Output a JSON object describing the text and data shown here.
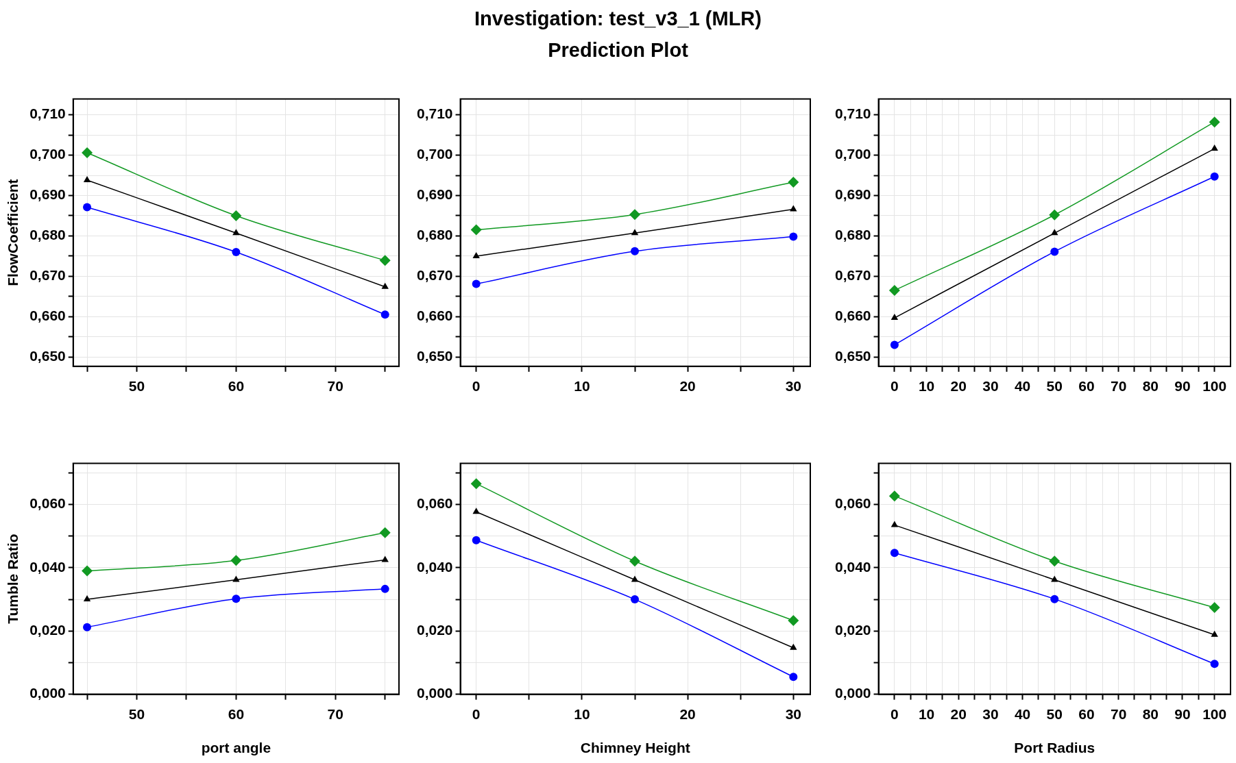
{
  "chart_data": [
    {
      "type": "line",
      "ylabel": "FlowCoefficient",
      "x": [
        45,
        60,
        75
      ],
      "xlim": [
        43.6,
        76.4
      ],
      "xticks": [
        {
          "value": 45,
          "label": null
        },
        50,
        {
          "value": 55,
          "label": null
        },
        60,
        {
          "value": 65,
          "label": null
        },
        70,
        {
          "value": 75,
          "label": null
        }
      ],
      "ylim": [
        0.6477,
        0.7139
      ],
      "yticks": [
        {
          "value": 0.65,
          "label": "0,650"
        },
        {
          "value": 0.655,
          "label": null
        },
        {
          "value": 0.66,
          "label": "0,660"
        },
        {
          "value": 0.665,
          "label": null
        },
        {
          "value": 0.67,
          "label": "0,670"
        },
        {
          "value": 0.675,
          "label": null
        },
        {
          "value": 0.68,
          "label": "0,680"
        },
        {
          "value": 0.685,
          "label": null
        },
        {
          "value": 0.69,
          "label": "0,690"
        },
        {
          "value": 0.695,
          "label": null
        },
        {
          "value": 0.7,
          "label": "0,700"
        },
        {
          "value": 0.705,
          "label": null
        },
        {
          "value": 0.71,
          "label": "0,710"
        }
      ],
      "grid": true,
      "series": [
        {
          "color": "#119922",
          "marker": "diamond",
          "values": [
            0.7006,
            0.685,
            0.6739
          ]
        },
        {
          "color": "#000000",
          "marker": "triangle",
          "values": [
            0.6938,
            0.6807,
            0.6674
          ]
        },
        {
          "color": "#0000ff",
          "marker": "circle",
          "values": [
            0.6871,
            0.676,
            0.6605
          ]
        }
      ]
    },
    {
      "type": "line",
      "title": "Investigation: test_v3_1 (MLR)",
      "subtitle": "Prediction Plot",
      "x": [
        0,
        15,
        30
      ],
      "xlim": [
        -1.5,
        31.6
      ],
      "xticks": [
        0,
        {
          "value": 5,
          "label": null
        },
        10,
        {
          "value": 15,
          "label": null
        },
        20,
        {
          "value": 25,
          "label": null
        },
        30
      ],
      "ylim": [
        0.6477,
        0.7139
      ],
      "yticks": [
        {
          "value": 0.65,
          "label": "0,650"
        },
        {
          "value": 0.655,
          "label": null
        },
        {
          "value": 0.66,
          "label": "0,660"
        },
        {
          "value": 0.665,
          "label": null
        },
        {
          "value": 0.67,
          "label": "0,670"
        },
        {
          "value": 0.675,
          "label": null
        },
        {
          "value": 0.68,
          "label": "0,680"
        },
        {
          "value": 0.685,
          "label": null
        },
        {
          "value": 0.69,
          "label": "0,690"
        },
        {
          "value": 0.695,
          "label": null
        },
        {
          "value": 0.7,
          "label": "0,700"
        },
        {
          "value": 0.705,
          "label": null
        },
        {
          "value": 0.71,
          "label": "0,710"
        }
      ],
      "grid": true,
      "series": [
        {
          "color": "#119922",
          "marker": "diamond",
          "values": [
            0.6815,
            0.6853,
            0.6933
          ]
        },
        {
          "color": "#000000",
          "marker": "triangle",
          "values": [
            0.675,
            0.6807,
            0.6866
          ]
        },
        {
          "color": "#0000ff",
          "marker": "circle",
          "values": [
            0.6681,
            0.6762,
            0.6798
          ]
        }
      ]
    },
    {
      "type": "line",
      "x": [
        0,
        50,
        100
      ],
      "xlim": [
        -5,
        105
      ],
      "xticks": [
        0,
        {
          "value": 5,
          "label": null
        },
        10,
        {
          "value": 15,
          "label": null
        },
        20,
        {
          "value": 25,
          "label": null
        },
        30,
        {
          "value": 35,
          "label": null
        },
        40,
        {
          "value": 45,
          "label": null
        },
        50,
        {
          "value": 55,
          "label": null
        },
        60,
        {
          "value": 65,
          "label": null
        },
        70,
        {
          "value": 75,
          "label": null
        },
        80,
        {
          "value": 85,
          "label": null
        },
        90,
        {
          "value": 95,
          "label": null
        },
        100
      ],
      "ylim": [
        0.6477,
        0.7139
      ],
      "yticks": [
        {
          "value": 0.65,
          "label": "0,650"
        },
        {
          "value": 0.655,
          "label": null
        },
        {
          "value": 0.66,
          "label": "0,660"
        },
        {
          "value": 0.665,
          "label": null
        },
        {
          "value": 0.67,
          "label": "0,670"
        },
        {
          "value": 0.675,
          "label": null
        },
        {
          "value": 0.68,
          "label": "0,680"
        },
        {
          "value": 0.685,
          "label": null
        },
        {
          "value": 0.69,
          "label": "0,690"
        },
        {
          "value": 0.695,
          "label": null
        },
        {
          "value": 0.7,
          "label": "0,700"
        },
        {
          "value": 0.705,
          "label": null
        },
        {
          "value": 0.71,
          "label": "0,710"
        }
      ],
      "grid": true,
      "series": [
        {
          "color": "#119922",
          "marker": "diamond",
          "values": [
            0.6665,
            0.6852,
            0.7082
          ]
        },
        {
          "color": "#000000",
          "marker": "triangle",
          "values": [
            0.6597,
            0.6807,
            0.7016
          ]
        },
        {
          "color": "#0000ff",
          "marker": "circle",
          "values": [
            0.653,
            0.6761,
            0.6947
          ]
        }
      ]
    },
    {
      "type": "line",
      "ylabel": "Tumble Ratio",
      "xlabel": "port angle",
      "x": [
        45,
        60,
        75
      ],
      "xlim": [
        43.6,
        76.4
      ],
      "xticks": [
        {
          "value": 45,
          "label": null
        },
        50,
        {
          "value": 55,
          "label": null
        },
        60,
        {
          "value": 65,
          "label": null
        },
        70,
        {
          "value": 75,
          "label": null
        }
      ],
      "ylim": [
        0,
        0.073
      ],
      "yticks": [
        {
          "value": 0,
          "label": "0,000"
        },
        {
          "value": 0.01,
          "label": null
        },
        {
          "value": 0.02,
          "label": "0,020"
        },
        {
          "value": 0.03,
          "label": null
        },
        {
          "value": 0.04,
          "label": "0,040"
        },
        {
          "value": 0.05,
          "label": null
        },
        {
          "value": 0.06,
          "label": "0,060"
        },
        {
          "value": 0.07,
          "label": null
        }
      ],
      "grid": true,
      "series": [
        {
          "color": "#119922",
          "marker": "diamond",
          "values": [
            0.039,
            0.0423,
            0.0511
          ]
        },
        {
          "color": "#000000",
          "marker": "triangle",
          "values": [
            0.03,
            0.0362,
            0.0425
          ]
        },
        {
          "color": "#0000ff",
          "marker": "circle",
          "values": [
            0.0212,
            0.0302,
            0.0333
          ]
        }
      ]
    },
    {
      "type": "line",
      "xlabel": "Chimney Height",
      "x": [
        0,
        15,
        30
      ],
      "xlim": [
        -1.5,
        31.6
      ],
      "xticks": [
        0,
        {
          "value": 5,
          "label": null
        },
        10,
        {
          "value": 15,
          "label": null
        },
        20,
        {
          "value": 25,
          "label": null
        },
        30
      ],
      "ylim": [
        0,
        0.073
      ],
      "yticks": [
        {
          "value": 0,
          "label": "0,000"
        },
        {
          "value": 0.01,
          "label": null
        },
        {
          "value": 0.02,
          "label": "0,020"
        },
        {
          "value": 0.03,
          "label": null
        },
        {
          "value": 0.04,
          "label": "0,040"
        },
        {
          "value": 0.05,
          "label": null
        },
        {
          "value": 0.06,
          "label": "0,060"
        },
        {
          "value": 0.07,
          "label": null
        }
      ],
      "grid": true,
      "series": [
        {
          "color": "#119922",
          "marker": "diamond",
          "values": [
            0.0666,
            0.0421,
            0.0233
          ]
        },
        {
          "color": "#000000",
          "marker": "triangle",
          "values": [
            0.0577,
            0.0362,
            0.0147
          ]
        },
        {
          "color": "#0000ff",
          "marker": "circle",
          "values": [
            0.0487,
            0.03,
            0.0055
          ]
        }
      ]
    },
    {
      "type": "line",
      "xlabel": "Port Radius",
      "x": [
        0,
        50,
        100
      ],
      "xlim": [
        -5,
        105
      ],
      "xticks": [
        0,
        {
          "value": 5,
          "label": null
        },
        10,
        {
          "value": 15,
          "label": null
        },
        20,
        {
          "value": 25,
          "label": null
        },
        30,
        {
          "value": 35,
          "label": null
        },
        40,
        {
          "value": 45,
          "label": null
        },
        50,
        {
          "value": 55,
          "label": null
        },
        60,
        {
          "value": 65,
          "label": null
        },
        70,
        {
          "value": 75,
          "label": null
        },
        80,
        {
          "value": 85,
          "label": null
        },
        90,
        {
          "value": 95,
          "label": null
        },
        100
      ],
      "ylim": [
        0,
        0.073
      ],
      "yticks": [
        {
          "value": 0,
          "label": "0,000"
        },
        {
          "value": 0.01,
          "label": null
        },
        {
          "value": 0.02,
          "label": "0,020"
        },
        {
          "value": 0.03,
          "label": null
        },
        {
          "value": 0.04,
          "label": "0,040"
        },
        {
          "value": 0.05,
          "label": null
        },
        {
          "value": 0.06,
          "label": "0,060"
        },
        {
          "value": 0.07,
          "label": null
        }
      ],
      "grid": true,
      "series": [
        {
          "color": "#119922",
          "marker": "diamond",
          "values": [
            0.0627,
            0.0421,
            0.0274
          ]
        },
        {
          "color": "#000000",
          "marker": "triangle",
          "values": [
            0.0535,
            0.0362,
            0.0188
          ]
        },
        {
          "color": "#0000ff",
          "marker": "circle",
          "values": [
            0.0447,
            0.0301,
            0.0096
          ]
        }
      ]
    }
  ]
}
